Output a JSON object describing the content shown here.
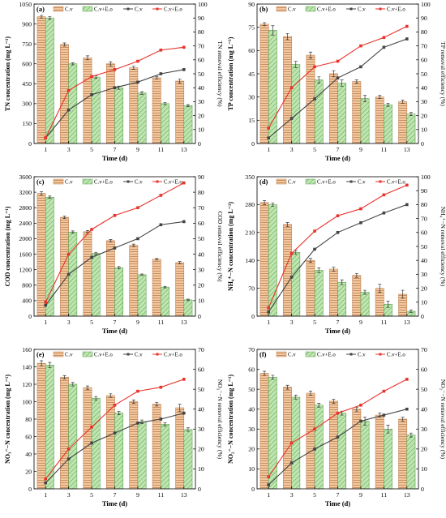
{
  "legend": {
    "cv": "C.v",
    "cveo": "C.v+E.o"
  },
  "colors": {
    "cv_bar": "#f2c8a0",
    "cv_bar_hatch": "#c08050",
    "cveo_bar": "#bfe6b0",
    "cveo_bar_hatch": "#5aa050",
    "cv_line": "#444444",
    "cveo_line": "#e8322a",
    "axis": "#000000"
  },
  "chart_data": [
    {
      "type": "bar",
      "panel_label": "(a)",
      "categories": [
        "1",
        "3",
        "5",
        "7",
        "9",
        "11",
        "13"
      ],
      "x_ticks": [
        "1",
        "3",
        "5",
        "7",
        "9",
        "11",
        "13"
      ],
      "xlabel": "Time (d)",
      "ylabel": "TN concentration (mg L⁻¹)",
      "y2label": "TN removal efficiency (%)",
      "ylim": [
        0,
        1050
      ],
      "yticks": [
        "0",
        "150",
        "300",
        "450",
        "600",
        "750",
        "900",
        "1050"
      ],
      "y2lim": [
        0,
        100
      ],
      "y2ticks": [
        "0",
        "10",
        "20",
        "30",
        "40",
        "50",
        "60",
        "70",
        "80",
        "90",
        "100"
      ],
      "series": [
        {
          "name": "C.v",
          "kind": "bar",
          "values": [
            955,
            745,
            645,
            600,
            570,
            495,
            470
          ],
          "errors": [
            10,
            12,
            15,
            15,
            12,
            10,
            15
          ]
        },
        {
          "name": "C.v+E.o",
          "kind": "bar",
          "values": [
            945,
            600,
            500,
            420,
            380,
            300,
            285
          ],
          "errors": [
            10,
            8,
            10,
            12,
            10,
            8,
            8
          ]
        },
        {
          "name": "C.v",
          "kind": "line",
          "axis": "right",
          "values": [
            4,
            24,
            35,
            40,
            44,
            50,
            53
          ]
        },
        {
          "name": "C.v+E.o",
          "kind": "line",
          "axis": "right",
          "values": [
            4,
            38,
            48,
            53,
            59,
            67,
            69
          ]
        }
      ]
    },
    {
      "type": "bar",
      "panel_label": "(b)",
      "categories": [
        "1",
        "3",
        "5",
        "7",
        "9",
        "11",
        "13"
      ],
      "x_ticks": [
        "1",
        "3",
        "5",
        "7",
        "9",
        "11",
        "13"
      ],
      "xlabel": "Time (d)",
      "ylabel": "TP concentration (mg L⁻¹)",
      "y2label": "TP removal efficiency (%)",
      "ylim": [
        0,
        90
      ],
      "yticks": [
        "0",
        "15",
        "30",
        "45",
        "60",
        "75",
        "90"
      ],
      "y2lim": [
        0,
        100
      ],
      "y2ticks": [
        "0",
        "10",
        "20",
        "30",
        "40",
        "50",
        "60",
        "70",
        "80",
        "90",
        "100"
      ],
      "series": [
        {
          "name": "C.v",
          "kind": "bar",
          "values": [
            77,
            69,
            57,
            45,
            40,
            30,
            27
          ],
          "errors": [
            1,
            2,
            2,
            2,
            1,
            1,
            1
          ]
        },
        {
          "name": "C.v+E.o",
          "kind": "bar",
          "values": [
            73,
            51,
            41,
            39,
            29,
            25,
            19
          ],
          "errors": [
            3,
            2,
            2,
            2,
            2,
            1,
            1
          ]
        },
        {
          "name": "C.v",
          "kind": "line",
          "axis": "right",
          "values": [
            4,
            18,
            32,
            47,
            55,
            69,
            75
          ]
        },
        {
          "name": "C.v+E.o",
          "kind": "line",
          "axis": "right",
          "values": [
            11,
            40,
            55,
            59,
            70,
            76,
            84
          ]
        }
      ]
    },
    {
      "type": "bar",
      "panel_label": "(c)",
      "categories": [
        "1",
        "3",
        "5",
        "7",
        "9",
        "11",
        "13"
      ],
      "x_ticks": [
        "1",
        "3",
        "5",
        "7",
        "9",
        "11",
        "13"
      ],
      "xlabel": "Time (d)",
      "ylabel": "COD concentration (mg L⁻¹)",
      "y2label": "COD removal efficiency (%)",
      "ylim": [
        0,
        3600
      ],
      "yticks": [
        "0",
        "400",
        "800",
        "1200",
        "1600",
        "2000",
        "2400",
        "2800",
        "3200",
        "3600"
      ],
      "y2lim": [
        0,
        90
      ],
      "y2ticks": [
        "0",
        "10",
        "20",
        "30",
        "40",
        "50",
        "60",
        "70",
        "80",
        "90"
      ],
      "series": [
        {
          "name": "C.v",
          "kind": "bar",
          "values": [
            3170,
            2550,
            2180,
            1950,
            1830,
            1470,
            1380
          ],
          "errors": [
            40,
            30,
            30,
            30,
            30,
            20,
            30
          ]
        },
        {
          "name": "C.v+E.o",
          "kind": "bar",
          "values": [
            3070,
            2170,
            1620,
            1250,
            1070,
            750,
            420
          ],
          "errors": [
            30,
            30,
            30,
            30,
            20,
            20,
            20
          ]
        },
        {
          "name": "C.v",
          "kind": "line",
          "axis": "right",
          "values": [
            7,
            27,
            38,
            44,
            50,
            59,
            61
          ]
        },
        {
          "name": "C.v+E.o",
          "kind": "line",
          "axis": "right",
          "values": [
            9,
            40,
            56,
            65,
            70,
            78,
            86
          ]
        }
      ]
    },
    {
      "type": "bar",
      "panel_label": "(d)",
      "categories": [
        "1",
        "3",
        "5",
        "7",
        "9",
        "11",
        "13"
      ],
      "x_ticks": [
        "1",
        "3",
        "5",
        "7",
        "9",
        "11",
        "13"
      ],
      "xlabel": "Time (d)",
      "ylabel": "NH₄⁺−N concentration (mg L⁻¹)",
      "y2label": "NH₄⁺−N removal efficiency (%)",
      "ylim": [
        0,
        350
      ],
      "yticks": [
        "0",
        "70",
        "140",
        "210",
        "280",
        "350"
      ],
      "y2lim": [
        0,
        100
      ],
      "y2ticks": [
        "0",
        "10",
        "20",
        "30",
        "40",
        "50",
        "60",
        "70",
        "80",
        "90",
        "100"
      ],
      "series": [
        {
          "name": "C.v",
          "kind": "bar",
          "values": [
            285,
            230,
            140,
            118,
            102,
            70,
            55
          ],
          "errors": [
            5,
            5,
            5,
            5,
            5,
            10,
            10
          ]
        },
        {
          "name": "C.v+E.o",
          "kind": "bar",
          "values": [
            280,
            160,
            115,
            85,
            60,
            30,
            12
          ],
          "errors": [
            4,
            5,
            6,
            6,
            5,
            8,
            3
          ]
        },
        {
          "name": "C.v",
          "kind": "line",
          "axis": "right",
          "values": [
            3,
            28,
            48,
            60,
            67,
            74,
            80
          ]
        },
        {
          "name": "C.v+E.o",
          "kind": "line",
          "axis": "right",
          "values": [
            6,
            45,
            61,
            72,
            77,
            87,
            94
          ]
        }
      ]
    },
    {
      "type": "bar",
      "panel_label": "(e)",
      "categories": [
        "1",
        "3",
        "5",
        "7",
        "9",
        "11",
        "13"
      ],
      "x_ticks": [
        "1",
        "3",
        "5",
        "7",
        "9",
        "11",
        "13"
      ],
      "xlabel": "Time (d)",
      "ylabel": "NO₃⁻−N concentration (mg L⁻¹)",
      "y2label": "NO₃⁻−N removal efficiency (%)",
      "ylim": [
        0,
        160
      ],
      "yticks": [
        "0",
        "20",
        "40",
        "60",
        "80",
        "100",
        "120",
        "140",
        "160"
      ],
      "y2lim": [
        0,
        70
      ],
      "y2ticks": [
        "0",
        "10",
        "20",
        "30",
        "40",
        "50",
        "60",
        "70"
      ],
      "series": [
        {
          "name": "C.v",
          "kind": "bar",
          "values": [
            144,
            128,
            116,
            107,
            100,
            97,
            93
          ],
          "errors": [
            3,
            2,
            2,
            2,
            2,
            2,
            4
          ]
        },
        {
          "name": "C.v+E.o",
          "kind": "bar",
          "values": [
            142,
            120,
            104,
            87,
            77,
            74,
            68
          ],
          "errors": [
            3,
            2,
            2,
            2,
            2,
            2,
            2
          ]
        },
        {
          "name": "C.v",
          "kind": "line",
          "axis": "right",
          "values": [
            3,
            15,
            23,
            28,
            33,
            35,
            38
          ]
        },
        {
          "name": "C.v+E.o",
          "kind": "line",
          "axis": "right",
          "values": [
            5,
            20,
            31,
            42,
            49,
            51,
            55
          ]
        }
      ]
    },
    {
      "type": "bar",
      "panel_label": "(f)",
      "categories": [
        "1",
        "3",
        "5",
        "7",
        "9",
        "11",
        "13"
      ],
      "x_ticks": [
        "1",
        "3",
        "5",
        "7",
        "9",
        "11",
        "13"
      ],
      "xlabel": "Time (d)",
      "ylabel": "NO₂⁻−N concentration (mg L⁻¹)",
      "y2label": "NO₂⁻−N removal efficiency (%)",
      "ylim": [
        0,
        70
      ],
      "yticks": [
        "0",
        "10",
        "20",
        "30",
        "40",
        "50",
        "60",
        "70"
      ],
      "y2lim": [
        0,
        70
      ],
      "y2ticks": [
        "0",
        "10",
        "20",
        "30",
        "40",
        "50",
        "60",
        "70"
      ],
      "series": [
        {
          "name": "C.v",
          "kind": "bar",
          "values": [
            58,
            51,
            48,
            44,
            40,
            37,
            35
          ],
          "errors": [
            1,
            1,
            1,
            1,
            1,
            1,
            1
          ]
        },
        {
          "name": "C.v+E.o",
          "kind": "bar",
          "values": [
            56,
            46,
            42,
            38,
            34,
            30,
            27
          ],
          "errors": [
            1,
            1,
            1,
            1,
            2,
            2,
            1
          ]
        },
        {
          "name": "C.v",
          "kind": "line",
          "axis": "right",
          "values": [
            2,
            13,
            20,
            26,
            34,
            37,
            40
          ]
        },
        {
          "name": "C.v+E.o",
          "kind": "line",
          "axis": "right",
          "values": [
            6,
            23,
            30,
            38,
            42,
            49,
            55
          ]
        }
      ]
    }
  ]
}
